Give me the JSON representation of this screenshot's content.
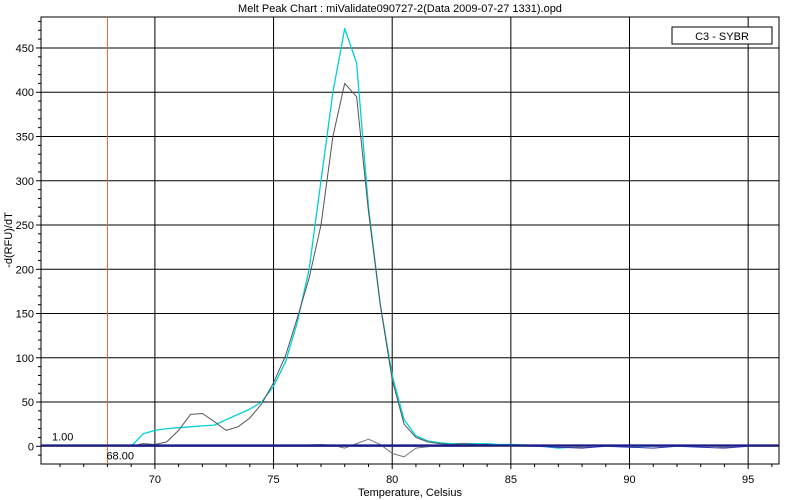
{
  "chart_data": {
    "type": "line",
    "title": "Melt Peak Chart : miValidate090727-2(Data 2009-07-27 1331).opd",
    "xlabel": "Temperature, Celsius",
    "ylabel": "-d(RFU)/dT",
    "xlim": [
      65.2,
      96.3
    ],
    "ylim": [
      -20,
      485
    ],
    "x_ticks": [
      70,
      75,
      80,
      85,
      90,
      95
    ],
    "y_ticks": [
      0,
      50,
      100,
      150,
      200,
      250,
      300,
      350,
      400,
      450
    ],
    "grid": true,
    "legend": {
      "position": "top-right",
      "entries": [
        "C3 - SYBR"
      ]
    },
    "threshold": {
      "value": 1.0,
      "label": "1.00",
      "color": "#1a1a8c"
    },
    "marker": {
      "x": 68.0,
      "label": "68.00",
      "color": "#d0703a"
    },
    "series": [
      {
        "color": "#00d0d8",
        "x": [
          69.0,
          69.5,
          70.0,
          70.5,
          71.0,
          71.5,
          72.0,
          72.5,
          73.0,
          73.5,
          74.0,
          74.5,
          75.0,
          75.5,
          76.0,
          76.5,
          77.0,
          77.5,
          78.0,
          78.5,
          79.0,
          79.5,
          80.0,
          80.5,
          81.0,
          81.5,
          82.0,
          82.5,
          83.0,
          83.5,
          84.0,
          84.5,
          85.0,
          86.0,
          87.0,
          88.0,
          89.0,
          90.0,
          91.0,
          92.0,
          93.0,
          94.0,
          95.0
        ],
        "y": [
          0,
          14,
          18,
          20,
          21,
          22,
          23,
          24,
          30,
          36,
          42,
          50,
          68,
          95,
          140,
          200,
          300,
          400,
          472,
          433,
          270,
          160,
          80,
          30,
          12,
          6,
          4,
          3,
          3,
          3,
          3,
          2,
          2,
          1,
          -2,
          0,
          1,
          0,
          0,
          0,
          1,
          0,
          0
        ]
      },
      {
        "color": "#555555",
        "x": [
          69.0,
          69.5,
          70.0,
          70.5,
          71.0,
          71.5,
          72.0,
          72.5,
          73.0,
          73.5,
          74.0,
          74.5,
          75.0,
          75.5,
          76.0,
          76.5,
          77.0,
          77.5,
          78.0,
          78.5,
          79.0,
          79.5,
          80.0,
          80.5,
          81.0,
          81.5,
          82.0,
          82.5,
          83.0,
          83.5,
          84.0,
          84.5,
          85.0,
          86.0,
          87.0,
          88.0,
          89.0,
          90.0,
          91.0,
          92.0,
          93.0,
          94.0,
          95.0
        ],
        "y": [
          0,
          3,
          2,
          5,
          18,
          36,
          37,
          28,
          18,
          22,
          32,
          48,
          72,
          102,
          145,
          190,
          250,
          350,
          410,
          395,
          265,
          160,
          75,
          25,
          10,
          5,
          3,
          2,
          3,
          2,
          2,
          1,
          1,
          1,
          -1,
          0,
          1,
          0,
          0,
          0,
          1,
          0,
          0
        ]
      },
      {
        "color": "#777777",
        "x": [
          69.0,
          70.0,
          71.0,
          72.0,
          73.0,
          74.0,
          75.0,
          76.0,
          77.0,
          77.5,
          78.0,
          78.5,
          79.0,
          79.5,
          80.0,
          80.5,
          81.0,
          82.0,
          83.0,
          84.0,
          85.0,
          86.0,
          87.0,
          88.0,
          89.0,
          90.0,
          91.0,
          92.0,
          93.0,
          94.0,
          95.0
        ],
        "y": [
          0,
          1,
          0,
          1,
          0,
          1,
          0,
          1,
          2,
          1,
          -2,
          3,
          8,
          2,
          -8,
          -12,
          -2,
          1,
          0,
          1,
          0,
          1,
          0,
          -1,
          0,
          1,
          0,
          0,
          1,
          -1,
          0
        ]
      },
      {
        "color": "#3030c0",
        "x": [
          69.0,
          71.0,
          73.0,
          75.0,
          77.0,
          79.0,
          81.0,
          83.0,
          85.0,
          86.0,
          87.0,
          88.0,
          89.0,
          90.0,
          91.0,
          92.0,
          93.0,
          94.0,
          95.0
        ],
        "y": [
          0,
          0,
          0,
          0,
          0,
          0,
          0,
          0,
          1,
          0,
          -1,
          -2,
          0,
          -1,
          -2,
          0,
          -1,
          -2,
          0
        ]
      }
    ]
  }
}
